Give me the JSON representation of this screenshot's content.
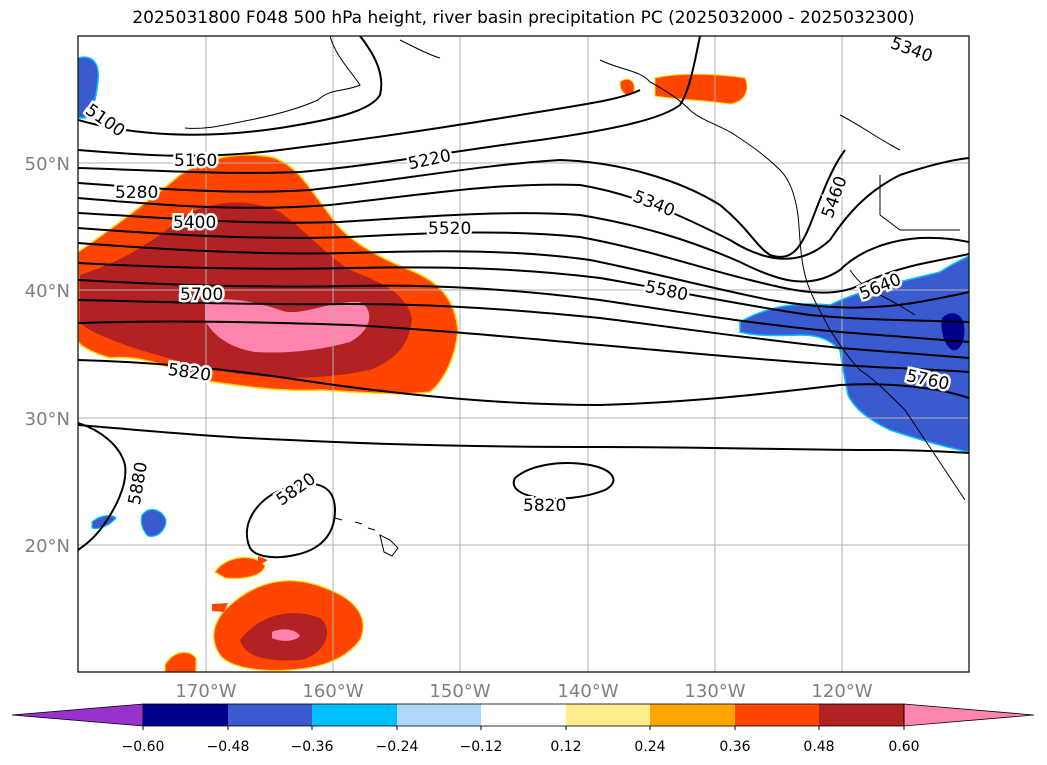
{
  "title": "2025031800 F048 500 hPa height, river basin precipitation PC (2025032000 - 2025032300)",
  "lat_labels": [
    "50°N",
    "40°N",
    "30°N",
    "20°N"
  ],
  "lon_labels": [
    "170°W",
    "160°W",
    "150°W",
    "140°W",
    "130°W",
    "120°W"
  ],
  "contour_labels": [
    "5100",
    "5160",
    "5280",
    "5400",
    "5220",
    "5520",
    "5340",
    "5340",
    "5460",
    "5580",
    "5640",
    "5700",
    "5760",
    "5820",
    "5820",
    "5820",
    "5880"
  ],
  "colorbar": {
    "ticks": [
      "−0.60",
      "−0.48",
      "−0.36",
      "−0.24",
      "−0.12",
      "0.12",
      "0.24",
      "0.36",
      "0.48",
      "0.60"
    ],
    "colors": [
      "#9932cc",
      "#00008b",
      "#3a5bcf",
      "#00bfff",
      "#add8f7",
      "#ffffff",
      "#ffec8b",
      "#ffa500",
      "#ff4500",
      "#b22222",
      "#ff85b0"
    ]
  }
}
